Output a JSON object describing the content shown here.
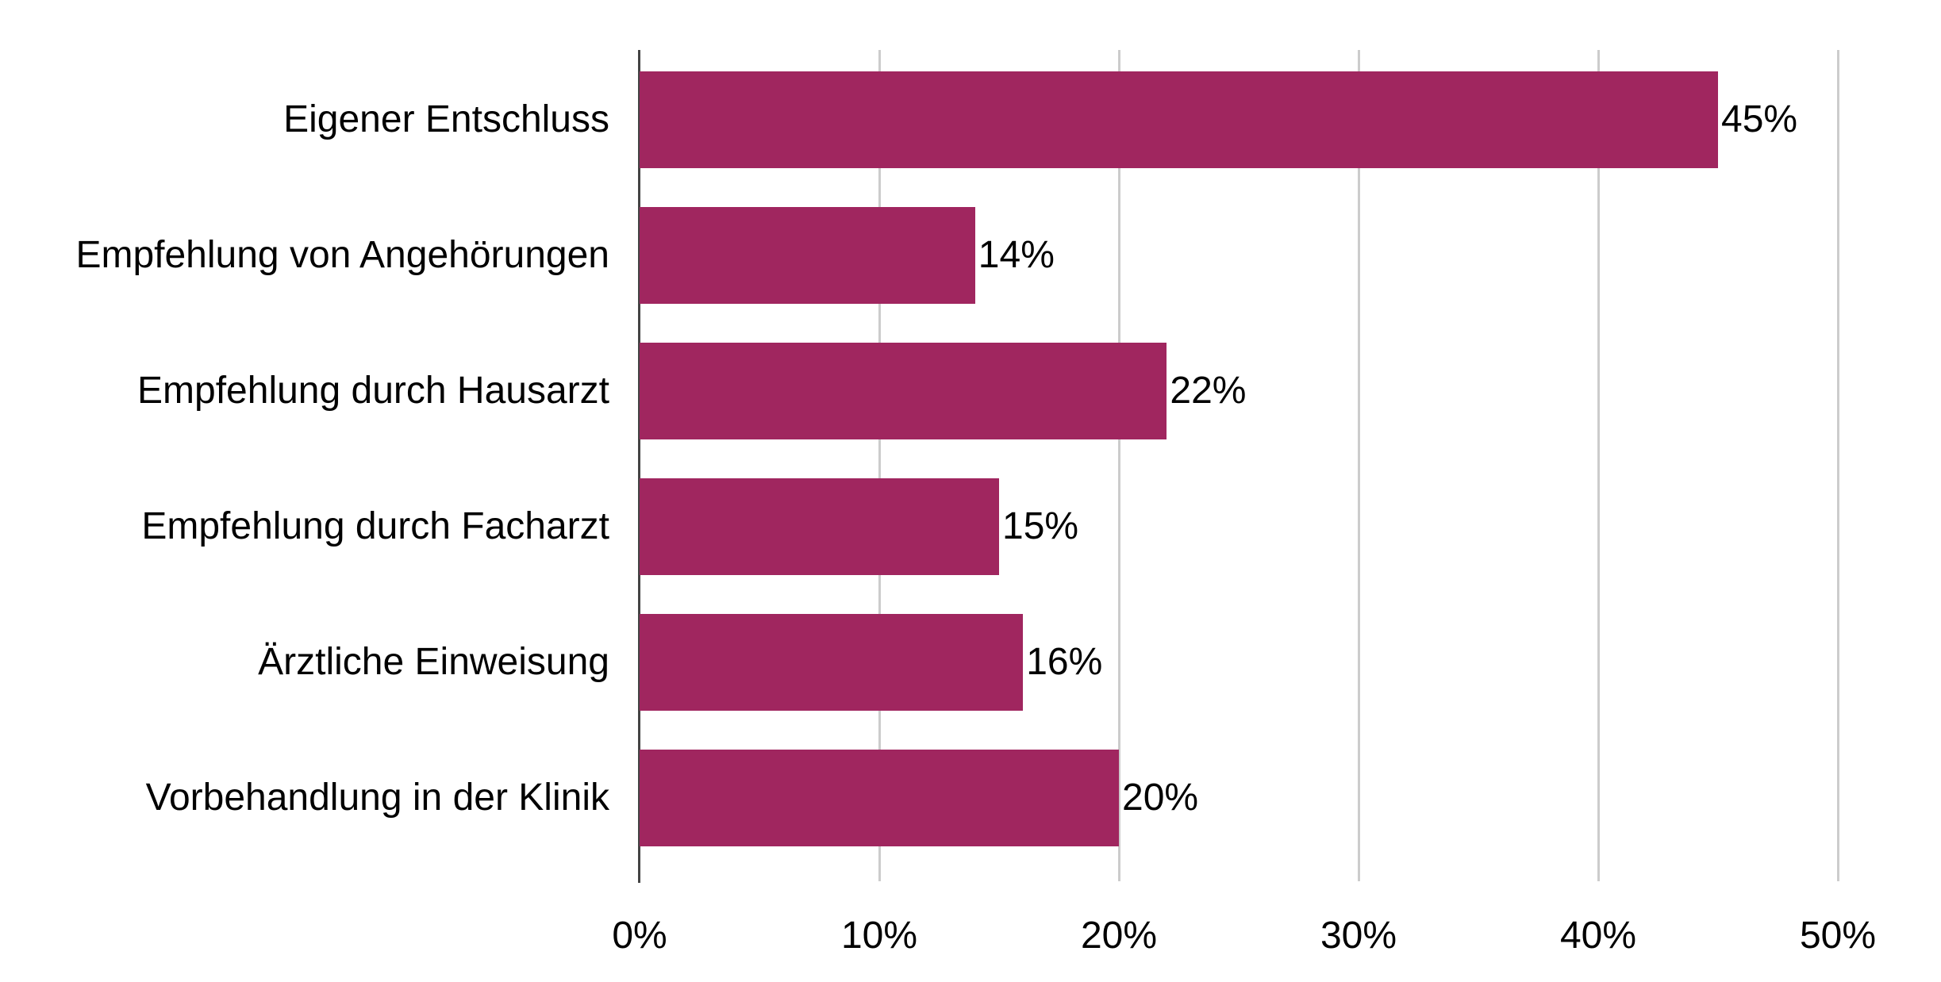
{
  "chart_data": {
    "type": "bar",
    "orientation": "horizontal",
    "title": "",
    "xlabel": "",
    "ylabel": "",
    "categories": [
      "Eigener Entschluss",
      "Empfehlung von Angehörungen",
      "Empfehlung durch Hausarzt",
      "Empfehlung durch Facharzt",
      "Ärztliche Einweisung",
      "Vorbehandlung in der Klinik"
    ],
    "values": [
      45,
      14,
      22,
      15,
      16,
      20
    ],
    "value_labels": [
      "45%",
      "14%",
      "22%",
      "15%",
      "16%",
      "20%"
    ],
    "xlim": [
      0,
      50
    ],
    "xticks": [
      0,
      10,
      20,
      30,
      40,
      50
    ],
    "xtick_labels": [
      "0%",
      "10%",
      "20%",
      "30%",
      "40%",
      "50%"
    ],
    "grid": "vertical",
    "legend": null,
    "bar_color": "#a0265f"
  },
  "colors": {
    "bar": "#a0265f",
    "gridline": "#cccccc",
    "axis": "#444444",
    "text": "#000000"
  }
}
